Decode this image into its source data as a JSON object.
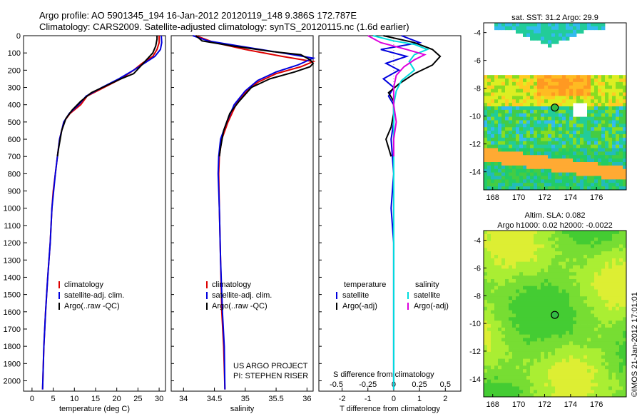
{
  "title": {
    "line1": "Argo profile: AO 5901345_194 16-Jan-2012 20120119_148 9.386S 172.787E",
    "line2": "Climatology: CARS2009. Satellite-adjusted climatology: synTS_20120115.nc (1.6d earlier)"
  },
  "credit": {
    "line1": "US ARGO PROJECT",
    "line2": "PI: STEPHEN RISER"
  },
  "watermark": "©IMOS 21-Jan-2012 17:01:01",
  "colors": {
    "climatology": "#dd0000",
    "satellite": "#0000dd",
    "argo": "#000000",
    "salinity_satellite": "#00dddd",
    "salinity_argo": "#dd00dd"
  },
  "chart_data": [
    {
      "type": "line",
      "id": "temperature",
      "xlabel": "temperature (deg C)",
      "ylabel": "",
      "xlim": [
        -2,
        31.5
      ],
      "ylim": [
        2060,
        0
      ],
      "xticks": [
        0,
        5,
        10,
        15,
        20,
        25,
        30
      ],
      "yticks": [
        0,
        100,
        200,
        300,
        400,
        500,
        600,
        700,
        800,
        900,
        1000,
        1100,
        1200,
        1300,
        1400,
        1500,
        1600,
        1700,
        1800,
        1900,
        2000
      ],
      "legend": [
        {
          "label": "climatology",
          "color": "#dd0000"
        },
        {
          "label": "satellite-adj. clim.",
          "color": "#0000dd"
        },
        {
          "label": "Argo(..raw -QC)",
          "color": "#000000"
        }
      ],
      "series": [
        {
          "name": "climatology",
          "color": "#dd0000",
          "points": [
            [
              30,
              0
            ],
            [
              30,
              40
            ],
            [
              29.5,
              80
            ],
            [
              28.5,
              120
            ],
            [
              26,
              160
            ],
            [
              24,
              200
            ],
            [
              21,
              250
            ],
            [
              17,
              300
            ],
            [
              13,
              350
            ],
            [
              11.5,
              400
            ],
            [
              9,
              450
            ],
            [
              7.5,
              500
            ],
            [
              6.5,
              600
            ],
            [
              6,
              700
            ],
            [
              5.5,
              800
            ],
            [
              5,
              900
            ],
            [
              4.7,
              1000
            ],
            [
              4.3,
              1200
            ],
            [
              3.7,
              1400
            ],
            [
              3.2,
              1600
            ],
            [
              2.8,
              1800
            ],
            [
              2.5,
              2050
            ]
          ]
        },
        {
          "name": "satellite-adj. clim.",
          "color": "#0000dd",
          "points": [
            [
              30.5,
              0
            ],
            [
              30.6,
              40
            ],
            [
              30.3,
              80
            ],
            [
              29,
              120
            ],
            [
              26.5,
              160
            ],
            [
              24,
              200
            ],
            [
              20.5,
              250
            ],
            [
              16.5,
              300
            ],
            [
              12.8,
              350
            ],
            [
              11,
              400
            ],
            [
              8.8,
              450
            ],
            [
              7.5,
              500
            ],
            [
              6.5,
              600
            ],
            [
              6,
              700
            ],
            [
              5.5,
              800
            ],
            [
              5.1,
              900
            ],
            [
              4.7,
              1000
            ],
            [
              4.3,
              1200
            ],
            [
              3.7,
              1400
            ],
            [
              3.2,
              1600
            ],
            [
              2.8,
              1800
            ],
            [
              2.5,
              2050
            ]
          ]
        },
        {
          "name": "Argo(..raw -QC)",
          "color": "#000000",
          "points": [
            [
              29.5,
              0
            ],
            [
              29.5,
              20
            ],
            [
              29.2,
              60
            ],
            [
              28.5,
              100
            ],
            [
              27,
              140
            ],
            [
              25.5,
              180
            ],
            [
              24,
              220
            ],
            [
              21,
              250
            ],
            [
              17.5,
              290
            ],
            [
              14,
              330
            ],
            [
              11.5,
              380
            ],
            [
              9.5,
              430
            ],
            [
              8,
              480
            ],
            [
              7,
              550
            ],
            [
              6.3,
              650
            ],
            [
              6,
              700
            ]
          ]
        }
      ]
    },
    {
      "type": "line",
      "id": "salinity",
      "xlabel": "salinity",
      "ylabel": "",
      "xlim": [
        33.8,
        36.1
      ],
      "ylim": [
        2060,
        0
      ],
      "xticks": [
        34,
        34.5,
        35,
        35.5,
        36
      ],
      "legend": [
        {
          "label": "climatology",
          "color": "#dd0000"
        },
        {
          "label": "satellite-adj. clim.",
          "color": "#0000dd"
        },
        {
          "label": "Argo(..raw -QC)",
          "color": "#000000"
        }
      ],
      "series": [
        {
          "name": "climatology",
          "color": "#dd0000",
          "points": [
            [
              34.2,
              0
            ],
            [
              34.5,
              40
            ],
            [
              35,
              80
            ],
            [
              35.6,
              120
            ],
            [
              36.1,
              150
            ],
            [
              35.9,
              180
            ],
            [
              35.5,
              220
            ],
            [
              35.2,
              270
            ],
            [
              35,
              330
            ],
            [
              34.85,
              400
            ],
            [
              34.72,
              500
            ],
            [
              34.62,
              600
            ],
            [
              34.58,
              700
            ],
            [
              34.57,
              800
            ],
            [
              34.58,
              1000
            ],
            [
              34.6,
              1300
            ],
            [
              34.62,
              1600
            ],
            [
              34.65,
              1800
            ],
            [
              34.67,
              2050
            ]
          ]
        },
        {
          "name": "satellite-adj. clim.",
          "color": "#0000dd",
          "points": [
            [
              34.15,
              0
            ],
            [
              34.4,
              30
            ],
            [
              34.9,
              60
            ],
            [
              35.6,
              100
            ],
            [
              36.1,
              130
            ],
            [
              35.85,
              170
            ],
            [
              35.5,
              210
            ],
            [
              35.2,
              260
            ],
            [
              35,
              320
            ],
            [
              34.82,
              400
            ],
            [
              34.7,
              500
            ],
            [
              34.6,
              600
            ],
            [
              34.57,
              700
            ],
            [
              34.56,
              800
            ],
            [
              34.58,
              1000
            ],
            [
              34.6,
              1300
            ],
            [
              34.63,
              1600
            ],
            [
              34.66,
              1800
            ],
            [
              34.67,
              2050
            ]
          ]
        },
        {
          "name": "Argo(..raw -QC)",
          "color": "#000000",
          "points": [
            [
              34.2,
              0
            ],
            [
              34.3,
              30
            ],
            [
              34.8,
              60
            ],
            [
              35.4,
              90
            ],
            [
              35.9,
              110
            ],
            [
              36.05,
              140
            ],
            [
              36.1,
              160
            ],
            [
              36.05,
              180
            ],
            [
              35.8,
              210
            ],
            [
              35.4,
              250
            ],
            [
              35.1,
              300
            ],
            [
              34.9,
              380
            ],
            [
              34.75,
              450
            ],
            [
              34.65,
              550
            ],
            [
              34.6,
              650
            ],
            [
              34.58,
              700
            ]
          ]
        }
      ]
    },
    {
      "type": "line",
      "id": "difference",
      "xlabel": "T difference from climatology",
      "xlabel2": "S difference from climatology",
      "xlim": [
        -2.9,
        2.6
      ],
      "ylim": [
        2060,
        0
      ],
      "xticks": [
        -2,
        -1,
        0,
        1,
        2
      ],
      "xticks_top_labels": [
        "-0.5",
        "-0.25",
        "0",
        "0.25",
        "0.5"
      ],
      "xticks_top_pos": [
        -2,
        -1,
        0,
        1,
        2
      ],
      "legend_temperature": "temperature",
      "legend_salinity": "salinity",
      "legend": [
        {
          "label": "satellite",
          "color": "#0000dd",
          "group": "temperature"
        },
        {
          "label": "Argo(-adj)",
          "color": "#000000",
          "group": "temperature"
        },
        {
          "label": "satellite",
          "color": "#00dddd",
          "group": "salinity"
        },
        {
          "label": "Argo(-adj)",
          "color": "#dd00dd",
          "group": "salinity"
        }
      ],
      "series": [
        {
          "name": "T satellite",
          "color": "#0000dd",
          "points": [
            [
              0.3,
              0
            ],
            [
              1,
              40
            ],
            [
              -0.5,
              80
            ],
            [
              0.5,
              120
            ],
            [
              -0.3,
              160
            ],
            [
              0.2,
              200
            ],
            [
              -0.4,
              250
            ],
            [
              0,
              300
            ],
            [
              -0.2,
              350
            ],
            [
              0,
              400
            ],
            [
              0,
              500
            ],
            [
              -0.1,
              600
            ],
            [
              0,
              800
            ],
            [
              -0.1,
              1000
            ],
            [
              0,
              1200
            ],
            [
              0,
              1500
            ],
            [
              0,
              1800
            ],
            [
              0,
              2050
            ]
          ]
        },
        {
          "name": "T Argo(-adj)",
          "color": "#000000",
          "points": [
            [
              -0.4,
              0
            ],
            [
              0.8,
              40
            ],
            [
              1.5,
              80
            ],
            [
              1.8,
              120
            ],
            [
              1.5,
              170
            ],
            [
              0.8,
              220
            ],
            [
              0.2,
              280
            ],
            [
              -0.2,
              330
            ],
            [
              0,
              380
            ],
            [
              0,
              450
            ],
            [
              -0.1,
              530
            ],
            [
              -0.3,
              600
            ],
            [
              -0.2,
              650
            ],
            [
              -0.1,
              700
            ]
          ]
        },
        {
          "name": "S satellite",
          "color": "#00dddd",
          "points": [
            [
              -0.8,
              0
            ],
            [
              0,
              30
            ],
            [
              0.8,
              50
            ],
            [
              1.3,
              80
            ],
            [
              0.8,
              110
            ],
            [
              0.6,
              150
            ],
            [
              0.8,
              200
            ],
            [
              0.3,
              260
            ],
            [
              0.1,
              320
            ],
            [
              0,
              400
            ],
            [
              0,
              500
            ],
            [
              0,
              700
            ],
            [
              0,
              900
            ],
            [
              0,
              1200
            ],
            [
              0,
              1600
            ],
            [
              0,
              2050
            ]
          ]
        },
        {
          "name": "S Argo(-adj)",
          "color": "#dd00dd",
          "points": [
            [
              -1,
              0
            ],
            [
              -0.5,
              40
            ],
            [
              0.5,
              80
            ],
            [
              1.2,
              110
            ],
            [
              0.8,
              140
            ],
            [
              0.4,
              180
            ],
            [
              0.1,
              230
            ],
            [
              0,
              300
            ],
            [
              0,
              400
            ],
            [
              0.1,
              500
            ],
            [
              0,
              600
            ],
            [
              0,
              700
            ]
          ]
        }
      ]
    }
  ],
  "maps": [
    {
      "id": "sst-map",
      "title": "sat. SST: 31.2  Argo: 29.9",
      "xticks": [
        "168",
        "170",
        "172",
        "174",
        "176"
      ],
      "yticks": [
        "-4",
        "-6",
        "-8",
        "-10",
        "-12",
        "-14"
      ],
      "marker": {
        "lon": 172.787,
        "lat": -9.386
      }
    },
    {
      "id": "sla-map",
      "title": "Altim. SLA: 0.082",
      "subtitle": "Argo h1000: 0.02 h2000: -0.0022",
      "xticks": [
        "168",
        "170",
        "172",
        "174",
        "176"
      ],
      "yticks": [
        "-4",
        "-6",
        "-8",
        "-10",
        "-12",
        "-14"
      ],
      "marker": {
        "lon": 172.787,
        "lat": -9.386
      }
    }
  ]
}
